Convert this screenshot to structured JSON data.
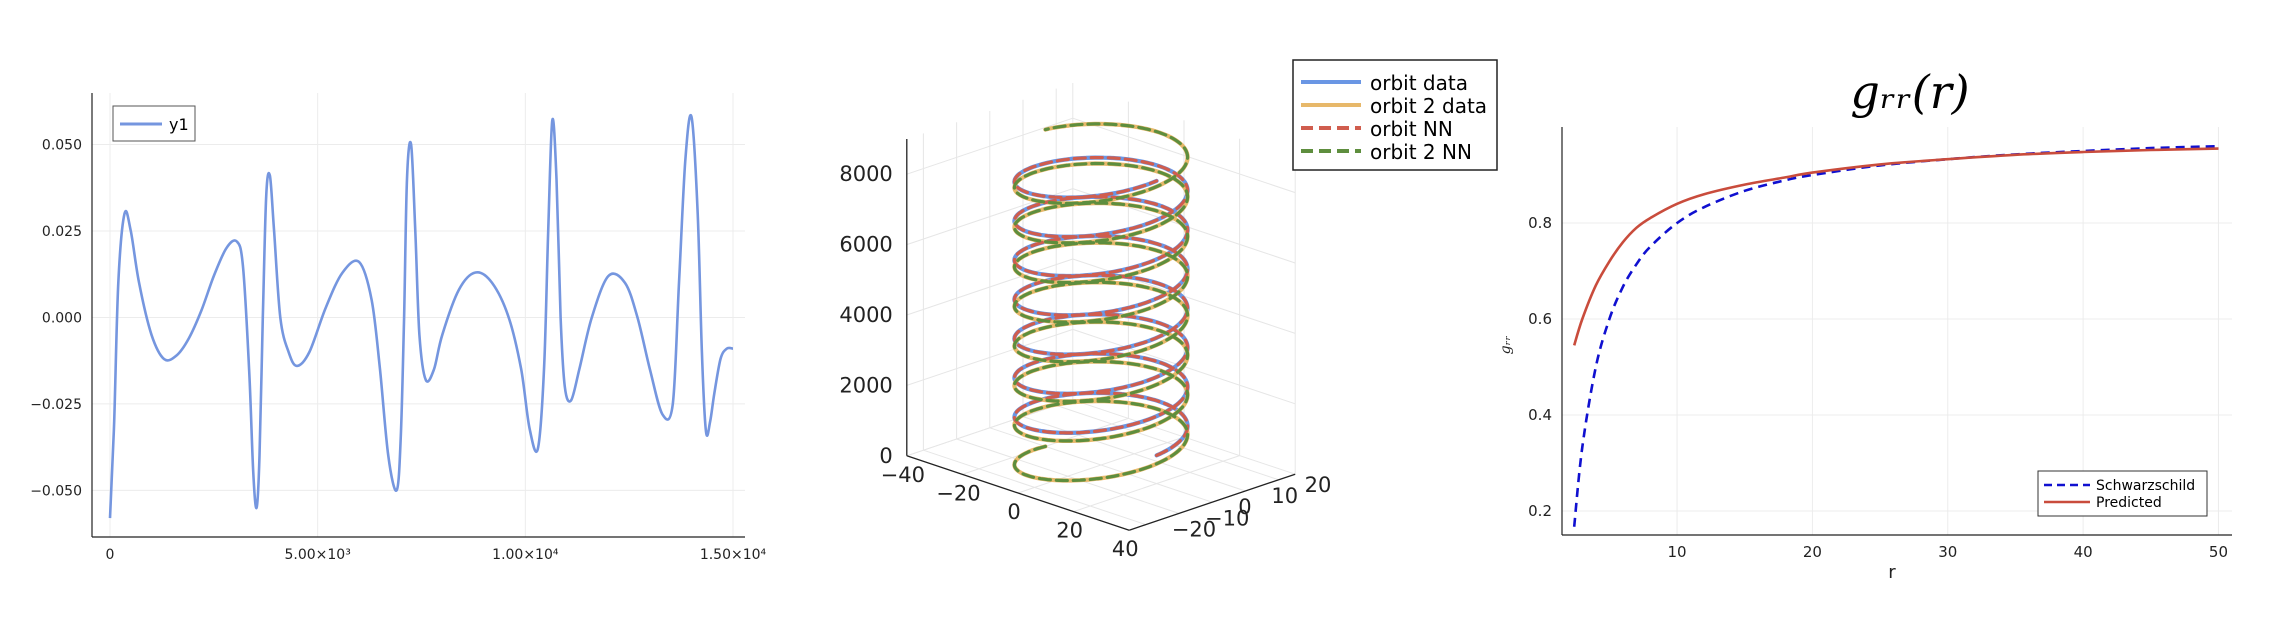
{
  "chart_data": [
    {
      "type": "line",
      "title": "",
      "xlabel": "",
      "ylabel": "",
      "xlim": [
        0,
        15000
      ],
      "ylim": [
        -0.06,
        0.062
      ],
      "x_ticks": [
        0,
        5000,
        10000,
        15000
      ],
      "x_tick_labels": [
        "0",
        "5.00×10³",
        "1.00×10⁴",
        "1.50×10⁴"
      ],
      "y_ticks": [
        0.05,
        0.025,
        0.0,
        -0.025,
        -0.05
      ],
      "y_tick_labels": [
        "0.050",
        "0.025",
        "0.000",
        "−0.025",
        "−0.050"
      ],
      "grid": true,
      "legend_position": "top-left",
      "series": [
        {
          "name": "y1",
          "color": "#7596df",
          "x": [
            0,
            100,
            200,
            350,
            500,
            700,
            1000,
            1300,
            1600,
            1900,
            2200,
            2500,
            2800,
            3050,
            3200,
            3350,
            3450,
            3530,
            3600,
            3680,
            3760,
            3850,
            3950,
            4100,
            4300,
            4500,
            4800,
            5200,
            5600,
            6000,
            6300,
            6500,
            6700,
            6900,
            7000,
            7080,
            7150,
            7250,
            7350,
            7450,
            7600,
            7800,
            8000,
            8400,
            8800,
            9200,
            9600,
            9900,
            10100,
            10300,
            10450,
            10550,
            10650,
            10750,
            10850,
            10950,
            11100,
            11300,
            11600,
            12000,
            12400,
            12700,
            13000,
            13300,
            13550,
            13700,
            13850,
            14000,
            14150,
            14250,
            14350,
            14450,
            14550,
            14700,
            14850,
            15000
          ],
          "y": [
            -0.058,
            -0.03,
            0.01,
            0.03,
            0.025,
            0.01,
            -0.005,
            -0.012,
            -0.011,
            -0.006,
            0.002,
            0.012,
            0.02,
            0.022,
            0.015,
            -0.015,
            -0.045,
            -0.055,
            -0.04,
            0.0,
            0.035,
            0.041,
            0.025,
            0.0,
            -0.01,
            -0.014,
            -0.01,
            0.003,
            0.013,
            0.016,
            0.005,
            -0.015,
            -0.04,
            -0.05,
            -0.035,
            0.0,
            0.04,
            0.05,
            0.025,
            -0.005,
            -0.018,
            -0.015,
            -0.005,
            0.008,
            0.013,
            0.01,
            0.0,
            -0.015,
            -0.032,
            -0.038,
            -0.015,
            0.025,
            0.057,
            0.04,
            0.0,
            -0.02,
            -0.024,
            -0.015,
            0.0,
            0.012,
            0.01,
            0.0,
            -0.015,
            -0.028,
            -0.025,
            0.01,
            0.045,
            0.058,
            0.03,
            -0.01,
            -0.033,
            -0.03,
            -0.022,
            -0.012,
            -0.009,
            -0.009
          ]
        }
      ]
    },
    {
      "type": "line3d",
      "title": "",
      "xlabel": "",
      "ylabel": "",
      "zlabel": "",
      "xlim": [
        -40,
        40
      ],
      "ylim": [
        -25,
        25
      ],
      "zlim": [
        0,
        9000
      ],
      "x_ticks": [
        -40,
        -20,
        0,
        20,
        40
      ],
      "x_tick_labels": [
        "−40",
        "−20",
        "0",
        "20",
        "40"
      ],
      "y_ticks": [
        -20,
        -10,
        0,
        10,
        20
      ],
      "y_tick_labels": [
        "−20",
        "−10",
        "0",
        "10",
        "20"
      ],
      "z_ticks": [
        0,
        2000,
        4000,
        6000,
        8000
      ],
      "z_tick_labels": [
        "0",
        "2000",
        "4000",
        "6000",
        "8000"
      ],
      "grid": true,
      "legend_position": "top-right",
      "helix_radius": 20,
      "series": [
        {
          "name": "orbit data",
          "color": "#6a96e4",
          "style": "solid",
          "phase": 0,
          "z_start": 800,
          "z_end": 8600,
          "turns": 7
        },
        {
          "name": "orbit 2 data",
          "color": "#e7b86a",
          "style": "solid",
          "phase": 3.14159,
          "z_start": 0,
          "z_end": 9000,
          "turns": 8
        },
        {
          "name": "orbit NN",
          "color": "#d05d4e",
          "style": "dashed",
          "phase": 0,
          "z_start": 800,
          "z_end": 8600,
          "turns": 7
        },
        {
          "name": "orbit 2 NN",
          "color": "#5e8e3e",
          "style": "dashed",
          "phase": 3.14159,
          "z_start": 0,
          "z_end": 9000,
          "turns": 8
        }
      ]
    },
    {
      "type": "line",
      "title": "gᵣᵣ(r)",
      "xlabel": "r",
      "ylabel": "gᵣᵣ",
      "xlim": [
        1.5,
        51
      ],
      "ylim": [
        0.15,
        1.0
      ],
      "x_ticks": [
        10,
        20,
        30,
        40,
        50
      ],
      "x_tick_labels": [
        "10",
        "20",
        "30",
        "40",
        "50"
      ],
      "y_ticks": [
        0.2,
        0.4,
        0.6,
        0.8
      ],
      "y_tick_labels": [
        "0.2",
        "0.4",
        "0.6",
        "0.8"
      ],
      "grid": true,
      "legend_position": "bottom-right",
      "series": [
        {
          "name": "Schwarzschild",
          "color": "#1010d0",
          "style": "dashed",
          "x": [
            2.4,
            3,
            4,
            5,
            6,
            7,
            8,
            10,
            12,
            15,
            18,
            20,
            25,
            30,
            35,
            40,
            45,
            50
          ],
          "y": [
            0.167,
            0.333,
            0.5,
            0.6,
            0.667,
            0.714,
            0.75,
            0.8,
            0.833,
            0.867,
            0.889,
            0.9,
            0.92,
            0.933,
            0.943,
            0.95,
            0.956,
            0.96
          ]
        },
        {
          "name": "Predicted",
          "color": "#c94c3c",
          "style": "solid",
          "x": [
            2.4,
            3,
            4,
            5,
            6,
            7,
            8,
            10,
            12,
            15,
            18,
            20,
            25,
            30,
            35,
            40,
            45,
            50
          ],
          "y": [
            0.545,
            0.6,
            0.67,
            0.72,
            0.76,
            0.79,
            0.81,
            0.84,
            0.86,
            0.88,
            0.895,
            0.905,
            0.922,
            0.933,
            0.942,
            0.948,
            0.952,
            0.955
          ]
        }
      ]
    }
  ]
}
